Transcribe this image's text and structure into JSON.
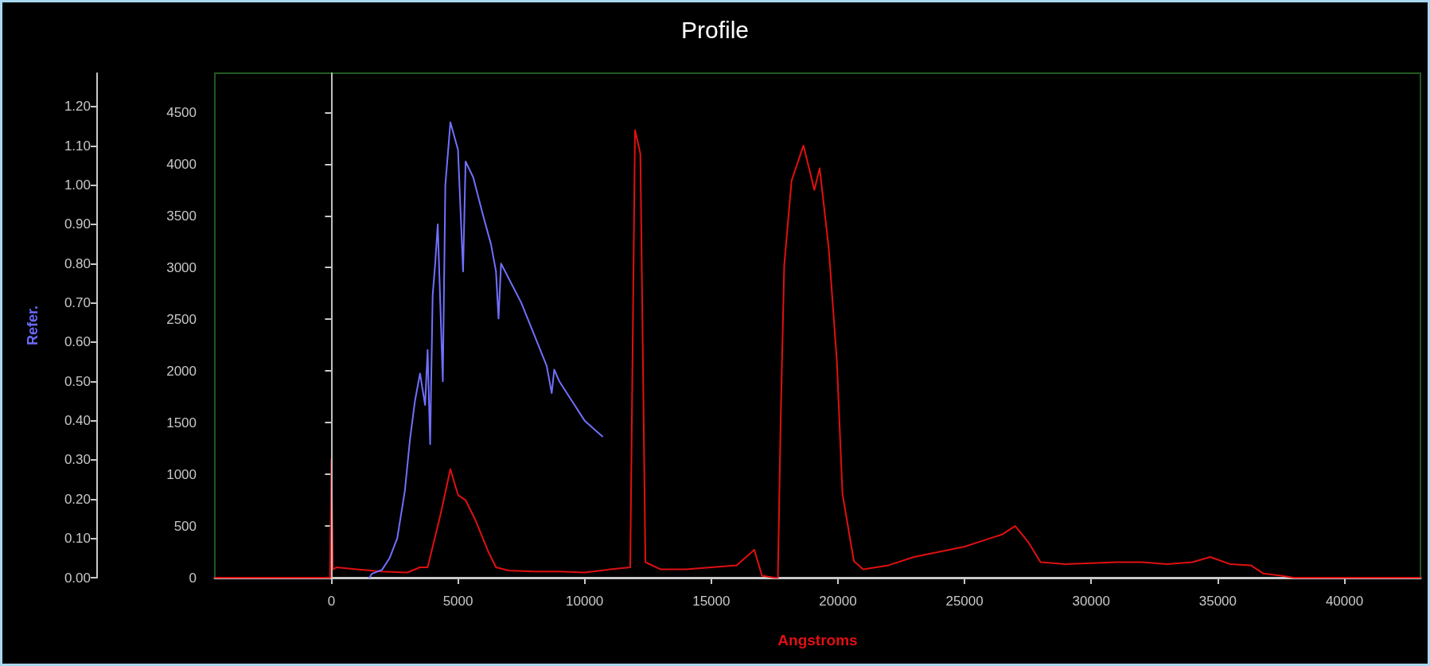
{
  "chart_data": {
    "type": "line",
    "title": "Profile",
    "xlabel": "Angstroms",
    "y2label": "Refer.",
    "marker": "none",
    "line_style": "solid",
    "xlim": [
      -4600,
      43000
    ],
    "xticks": [
      0,
      5000,
      10000,
      15000,
      20000,
      25000,
      30000,
      35000,
      40000
    ],
    "ylim": [
      0,
      4880
    ],
    "yticks": [
      0,
      500,
      1000,
      1500,
      2000,
      2500,
      3000,
      3500,
      4000,
      4500
    ],
    "y2lim": [
      0,
      1.285
    ],
    "y2ticks": [
      {
        "value": 0,
        "label": "0.00"
      },
      {
        "value": 0.1,
        "label": "0.10"
      },
      {
        "value": 0.2,
        "label": "0.20"
      },
      {
        "value": 0.3,
        "label": "0.30"
      },
      {
        "value": 0.4,
        "label": "0.40"
      },
      {
        "value": 0.5,
        "label": "0.50"
      },
      {
        "value": 0.6,
        "label": "0.60"
      },
      {
        "value": 0.7,
        "label": "0.70"
      },
      {
        "value": 0.8,
        "label": "0.80"
      },
      {
        "value": 0.9,
        "label": "0.90"
      },
      {
        "value": 1,
        "label": "1.00"
      },
      {
        "value": 1.1,
        "label": "1.10"
      },
      {
        "value": 1.2,
        "label": "1.20"
      }
    ],
    "ref_lines": [
      {
        "axis": "x",
        "value": 0,
        "color": "#c0c0c0"
      }
    ],
    "series": [
      {
        "color": "#e01010",
        "x": [
          -4600,
          -50,
          0,
          60,
          200,
          1000,
          2000,
          3000,
          3500,
          3800,
          4000,
          4300,
          4700,
          5000,
          5300,
          5700,
          6200,
          6500,
          7000,
          8000,
          9000,
          10000,
          11000,
          11800,
          11990,
          12200,
          12400,
          13000,
          14000,
          15000,
          16000,
          16700,
          17000,
          17500,
          17630,
          17740,
          17880,
          18170,
          18640,
          19070,
          19280,
          19640,
          19960,
          20180,
          20630,
          21000,
          22000,
          23000,
          24000,
          25000,
          26000,
          26500,
          27000,
          27500,
          28000,
          29000,
          30000,
          31000,
          32000,
          33000,
          34000,
          34700,
          35500,
          36300,
          36800,
          37500,
          38000,
          43000
        ],
        "values": [
          0,
          0,
          1150,
          80,
          100,
          80,
          60,
          50,
          100,
          100,
          300,
          600,
          1050,
          800,
          750,
          550,
          250,
          100,
          70,
          60,
          60,
          50,
          80,
          100,
          4330,
          4100,
          150,
          80,
          80,
          100,
          120,
          270,
          20,
          0,
          0,
          1530,
          3020,
          3840,
          4180,
          3750,
          3960,
          3180,
          2090,
          810,
          160,
          80,
          120,
          200,
          250,
          300,
          380,
          420,
          500,
          350,
          150,
          130,
          140,
          150,
          150,
          130,
          150,
          200,
          130,
          120,
          40,
          20,
          0,
          0
        ]
      },
      {
        "color": "#7070ff",
        "axis": "y2",
        "x": [
          1500,
          1600,
          2000,
          2300,
          2600,
          2900,
          3100,
          3300,
          3500,
          3700,
          3800,
          3900,
          4000,
          4100,
          4200,
          4400,
          4500,
          4700,
          5000,
          5200,
          5300,
          5600,
          6000,
          6300,
          6500,
          6600,
          6700,
          7500,
          8000,
          8500,
          8700,
          8800,
          9000,
          9500,
          10000,
          10700
        ],
        "values": [
          0,
          0.01,
          0.02,
          0.05,
          0.1,
          0.22,
          0.35,
          0.45,
          0.52,
          0.44,
          0.58,
          0.34,
          0.72,
          0.8,
          0.9,
          0.5,
          1.0,
          1.16,
          1.09,
          0.78,
          1.06,
          1.02,
          0.92,
          0.85,
          0.78,
          0.66,
          0.8,
          0.7,
          0.62,
          0.54,
          0.47,
          0.53,
          0.5,
          0.45,
          0.4,
          0.36
        ]
      }
    ]
  }
}
